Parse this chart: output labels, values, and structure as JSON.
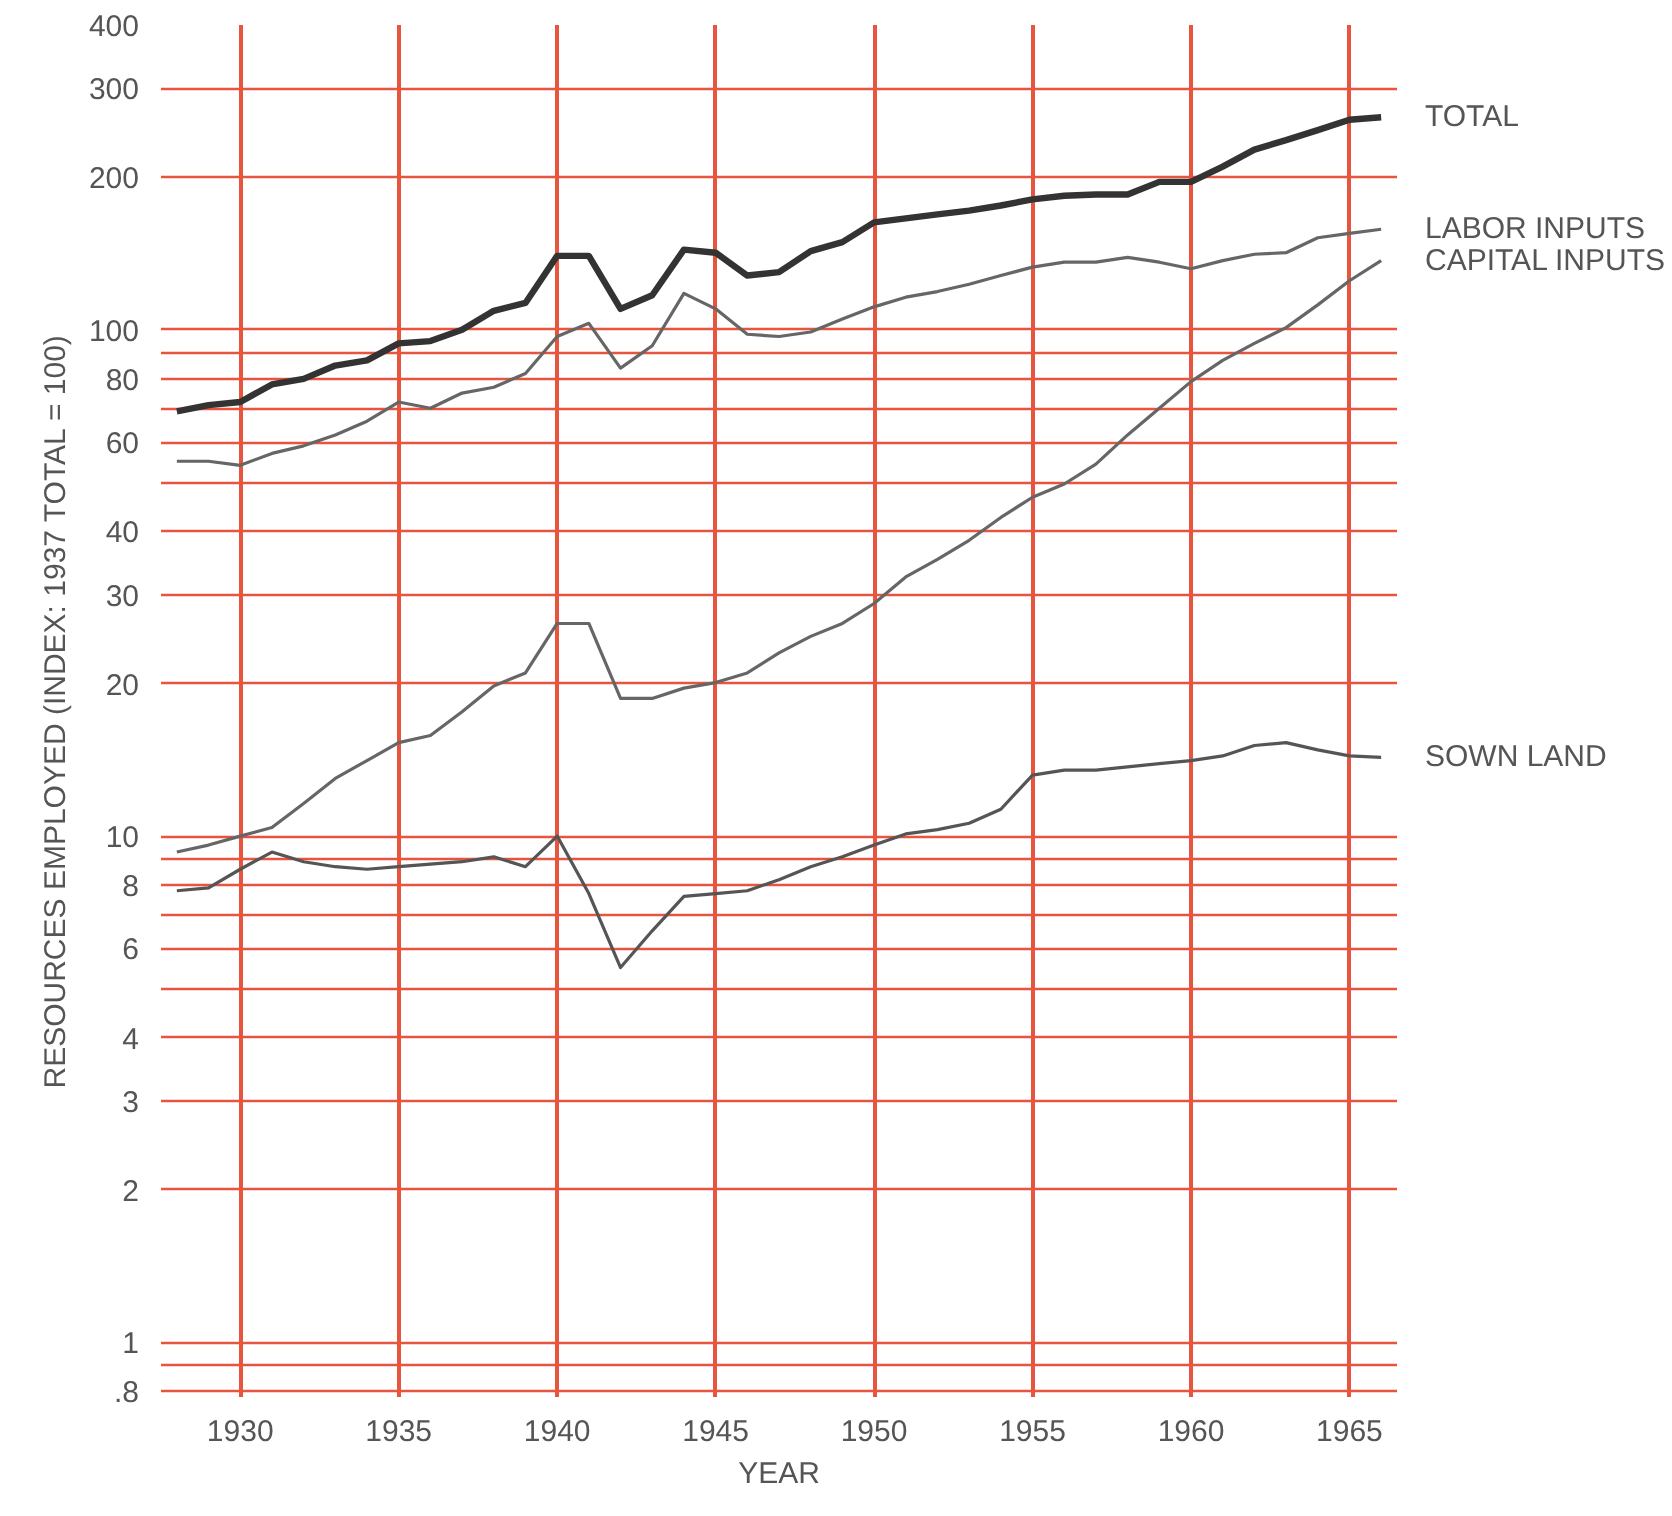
{
  "chart_data": {
    "type": "line",
    "xlabel": "YEAR",
    "ylabel": "RESOURCES EMPLOYED (INDEX: 1937 TOTAL = 100)",
    "x": [
      1928,
      1929,
      1930,
      1931,
      1932,
      1933,
      1934,
      1935,
      1936,
      1937,
      1938,
      1939,
      1940,
      1941,
      1942,
      1943,
      1944,
      1945,
      1946,
      1947,
      1948,
      1949,
      1950,
      1951,
      1952,
      1953,
      1954,
      1955,
      1956,
      1957,
      1958,
      1959,
      1960,
      1961,
      1962,
      1963,
      1964,
      1965,
      1966
    ],
    "series": [
      {
        "name": "TOTAL",
        "color": "#333333",
        "values": [
          69,
          71,
          72,
          78,
          80,
          85,
          87,
          94,
          95,
          100,
          109,
          113,
          140,
          140,
          110,
          117,
          144,
          142,
          128,
          130,
          143,
          149,
          163,
          166,
          169,
          172,
          176,
          181,
          184,
          185,
          185,
          196,
          196,
          210,
          227,
          237,
          248,
          260,
          263
        ]
      },
      {
        "name": "LABOR INPUTS",
        "color": "#666666",
        "values": [
          55,
          55,
          54,
          57,
          59,
          62,
          66,
          72,
          70,
          75,
          77,
          82,
          97,
          103,
          84,
          93,
          118,
          110,
          98,
          97,
          99,
          105,
          111,
          116,
          119,
          123,
          128,
          133,
          136,
          136,
          139,
          136,
          132,
          137,
          141,
          142,
          152,
          155,
          158
        ]
      },
      {
        "name": "CAPITAL INPUTS",
        "color": "#666666",
        "values": [
          9.3,
          9.6,
          10,
          10.4,
          11.6,
          13,
          14.1,
          15.3,
          15.8,
          17.6,
          19.8,
          21,
          26.3,
          26.3,
          18.7,
          18.7,
          19.6,
          20.1,
          21,
          23,
          24.8,
          26.3,
          28.8,
          32.5,
          35.2,
          38.4,
          42.6,
          46.7,
          49.6,
          54.3,
          62,
          70,
          79,
          87,
          94,
          101,
          112,
          125,
          137
        ]
      },
      {
        "name": "SOWN LAND",
        "color": "#555555",
        "values": [
          7.8,
          7.9,
          8.6,
          9.3,
          8.9,
          8.7,
          8.6,
          8.7,
          8.8,
          8.9,
          9.1,
          8.7,
          10,
          7.7,
          5.5,
          6.5,
          7.6,
          7.7,
          7.8,
          8.2,
          8.7,
          9.1,
          9.6,
          10.1,
          10.3,
          10.6,
          11.3,
          13.2,
          13.5,
          13.5,
          13.7,
          13.9,
          14.1,
          14.4,
          15.1,
          15.3,
          14.8,
          14.4,
          14.3
        ]
      }
    ],
    "log": true,
    "xlim": [
      1927.5,
      1966.5
    ],
    "ylim": [
      0.78,
      400
    ],
    "xticks": [
      1930,
      1935,
      1940,
      1945,
      1950,
      1955,
      1960,
      1965
    ],
    "yticks": [
      {
        "value": 0.8,
        "label": ".8"
      },
      {
        "value": 0.9,
        "label": null
      },
      1,
      2,
      3,
      4,
      {
        "value": 5,
        "label": null
      },
      6,
      {
        "value": 7,
        "label": null
      },
      8,
      {
        "value": 9,
        "label": null
      },
      10,
      20,
      30,
      40,
      {
        "value": 50,
        "label": null
      },
      60,
      {
        "value": 70,
        "label": null
      },
      80,
      {
        "value": 90,
        "label": null
      },
      100,
      200,
      300,
      400
    ],
    "grid": true,
    "marker": "none",
    "line_style": "solid"
  }
}
